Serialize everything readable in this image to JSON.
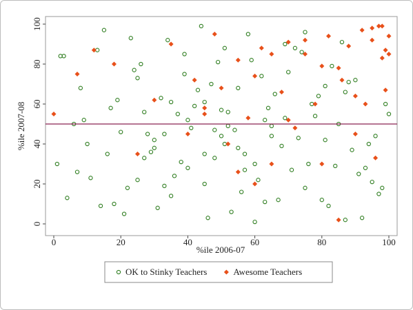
{
  "chart_data": {
    "type": "scatter",
    "x_label": "%ile 2006-07",
    "y_label": "%ile 2007-08",
    "xlim": [
      0,
      100
    ],
    "ylim": [
      0,
      100
    ],
    "xticks": [
      0,
      20,
      40,
      60,
      80,
      100
    ],
    "yticks": [
      0,
      20,
      40,
      60,
      80,
      100
    ],
    "reference_line": {
      "y": 50,
      "color": "#8b2252"
    },
    "series": [
      {
        "name": "OK to Stinky Teachers",
        "color": "#2e7d1f",
        "marker": "hollow-circle",
        "x": [
          1,
          4,
          7,
          10,
          13,
          16,
          19,
          22,
          25,
          28,
          31,
          34,
          37,
          40,
          43,
          46,
          49,
          52,
          55,
          58,
          61,
          64,
          67,
          70,
          73,
          76,
          79,
          82,
          85,
          88,
          91,
          94,
          97,
          99,
          3,
          9,
          15,
          21,
          27,
          33,
          39,
          45,
          51,
          57,
          63,
          69,
          75,
          81,
          87,
          93,
          2,
          6,
          11,
          17,
          23,
          29,
          35,
          41,
          47,
          53,
          59,
          65,
          71,
          77,
          83,
          89,
          95,
          100,
          8,
          14,
          20,
          26,
          32,
          38,
          44,
          50,
          56,
          62,
          68,
          74,
          80,
          86,
          92,
          98,
          18,
          24,
          30,
          36,
          42,
          48,
          54,
          60,
          66,
          72,
          78,
          84,
          90,
          96,
          27,
          33,
          39,
          45,
          51,
          57,
          63,
          69,
          75,
          81,
          87,
          30,
          40,
          50,
          60,
          35,
          45,
          55,
          65,
          25,
          48,
          52
        ],
        "y": [
          30,
          13,
          26,
          40,
          87,
          35,
          62,
          18,
          73,
          45,
          8,
          92,
          55,
          28,
          67,
          3,
          81,
          49,
          38,
          95,
          22,
          58,
          12,
          76,
          43,
          30,
          64,
          9,
          50,
          71,
          25,
          40,
          15,
          60,
          84,
          52,
          97,
          5,
          33,
          45,
          75,
          20,
          88,
          35,
          52,
          90,
          18,
          42,
          66,
          28,
          84,
          50,
          23,
          58,
          93,
          36,
          14,
          48,
          70,
          6,
          82,
          44,
          27,
          60,
          79,
          37,
          21,
          55,
          68,
          9,
          46,
          80,
          63,
          31,
          99,
          57,
          16,
          74,
          39,
          86,
          12,
          91,
          3,
          18,
          10,
          77,
          42,
          24,
          59,
          33,
          47,
          1,
          65,
          88,
          54,
          29,
          72,
          44,
          56,
          19,
          85,
          61,
          40,
          27,
          11,
          53,
          96,
          69,
          2,
          38,
          52,
          44,
          30,
          61,
          35,
          68,
          49,
          22,
          47,
          56
        ]
      },
      {
        "name": "Awesome Teachers",
        "color": "#e8501a",
        "marker": "diamond",
        "x": [
          0,
          7,
          12,
          18,
          25,
          30,
          35,
          40,
          42,
          45,
          48,
          50,
          52,
          55,
          58,
          60,
          62,
          65,
          68,
          70,
          72,
          75,
          78,
          80,
          82,
          85,
          86,
          88,
          90,
          92,
          93,
          95,
          96,
          97,
          98,
          99,
          100,
          100,
          99,
          98,
          60,
          70,
          80,
          85,
          90,
          45,
          55,
          65,
          75,
          95
        ],
        "y": [
          55,
          75,
          87,
          80,
          35,
          62,
          90,
          45,
          72,
          58,
          95,
          68,
          40,
          82,
          53,
          74,
          88,
          30,
          66,
          91,
          48,
          85,
          60,
          79,
          94,
          2,
          72,
          89,
          45,
          97,
          60,
          98,
          33,
          99,
          83,
          87,
          85,
          94,
          67,
          99,
          20,
          52,
          30,
          78,
          64,
          55,
          26,
          85,
          92,
          92
        ]
      }
    ]
  }
}
